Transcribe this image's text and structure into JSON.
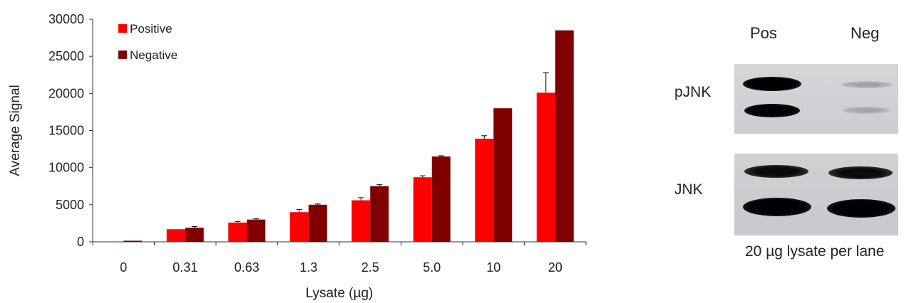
{
  "chart_data": {
    "type": "bar",
    "xlabel": "Lysate (µg)",
    "ylabel": "Average Signal",
    "ylim": [
      0,
      30000
    ],
    "yticks": [
      0,
      5000,
      10000,
      15000,
      20000,
      25000,
      30000
    ],
    "categories": [
      "0",
      "0.31",
      "0.63",
      "1.3",
      "2.5",
      "5.0",
      "10",
      "20"
    ],
    "series": [
      {
        "name": "Positive",
        "color": "#ff0000",
        "values": [
          0,
          1700,
          2600,
          4000,
          5600,
          8700,
          13900,
          20100
        ],
        "errors": [
          0,
          0,
          150,
          350,
          350,
          200,
          400,
          2700
        ]
      },
      {
        "name": "Negative",
        "color": "#800000",
        "values": [
          150,
          1900,
          3000,
          5000,
          7500,
          11500,
          18000,
          28500
        ],
        "errors": [
          0,
          150,
          100,
          100,
          200,
          100,
          0,
          0
        ]
      }
    ],
    "legend": "top-left",
    "grid": false
  },
  "blot": {
    "lanes": [
      "Pos",
      "Neg"
    ],
    "rows": [
      "pJNK",
      "JNK"
    ],
    "caption": "20 µg lysate per lane"
  }
}
